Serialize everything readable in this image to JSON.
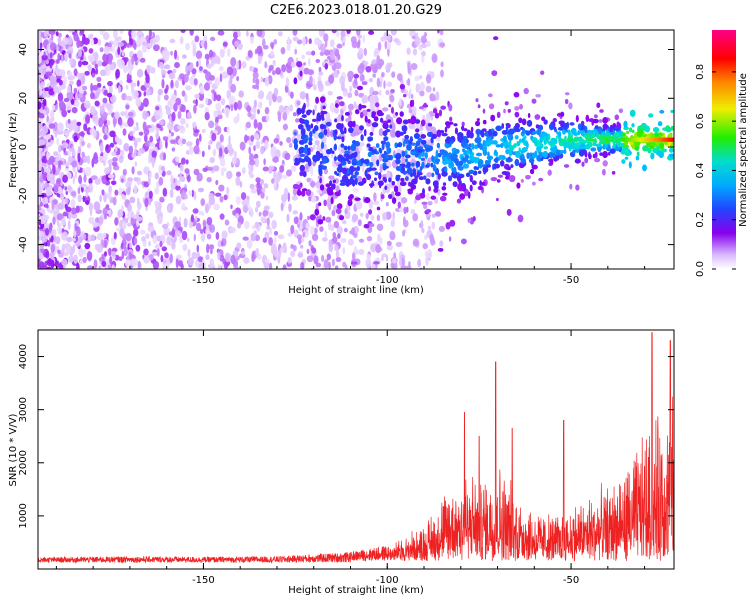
{
  "title": "C2E6.2023.018.01.20.G29",
  "chart_data": [
    {
      "type": "heatmap",
      "xlabel": "Height of straight line (km)",
      "ylabel": "Frequency (Hz)",
      "xlim": [
        -195,
        -22
      ],
      "ylim": [
        -50,
        48
      ],
      "xticks": [
        -150,
        -100,
        -50
      ],
      "yticks": [
        -40,
        -20,
        0,
        20,
        40
      ],
      "colorbar": {
        "label": "Normalized spectral amplitude",
        "range": [
          0,
          0.97
        ],
        "ticks": [
          0.0,
          0.2,
          0.4,
          0.6,
          0.8
        ],
        "colors": [
          "#ffffff",
          "#8800ee",
          "#2244ff",
          "#00ddff",
          "#22ee00",
          "#eeee00",
          "#ff6600",
          "#ff0000",
          "#ff0088"
        ]
      },
      "description_points": {
        "noise_region_x": [
          -195,
          -120
        ],
        "signal_track": [
          {
            "x": -120,
            "y": 1
          },
          {
            "x": -110,
            "y": -5
          },
          {
            "x": -100,
            "y": -3
          },
          {
            "x": -90,
            "y": -4
          },
          {
            "x": -80,
            "y": -4
          },
          {
            "x": -70,
            "y": 0
          },
          {
            "x": -60,
            "y": 1
          },
          {
            "x": -50,
            "y": 3
          },
          {
            "x": -40,
            "y": 3
          },
          {
            "x": -30,
            "y": 3
          },
          {
            "x": -22,
            "y": 3
          }
        ]
      }
    },
    {
      "type": "line",
      "xlabel": "Height of straight line (km)",
      "ylabel": "SNR (10 * V/V)",
      "xlim": [
        -195,
        -22
      ],
      "ylim": [
        0,
        4500
      ],
      "xticks": [
        -150,
        -100,
        -50
      ],
      "yticks": [
        1000,
        2000,
        3000,
        4000
      ],
      "color": "#ee2222",
      "envelope": [
        {
          "x": -195,
          "y": 220
        },
        {
          "x": -170,
          "y": 240
        },
        {
          "x": -150,
          "y": 230
        },
        {
          "x": -130,
          "y": 240
        },
        {
          "x": -110,
          "y": 320
        },
        {
          "x": -100,
          "y": 450
        },
        {
          "x": -90,
          "y": 900
        },
        {
          "x": -85,
          "y": 1500
        },
        {
          "x": -80,
          "y": 2100
        },
        {
          "x": -75,
          "y": 1800
        },
        {
          "x": -70,
          "y": 2200
        },
        {
          "x": -65,
          "y": 1600
        },
        {
          "x": -60,
          "y": 1200
        },
        {
          "x": -55,
          "y": 1100
        },
        {
          "x": -50,
          "y": 1300
        },
        {
          "x": -45,
          "y": 1500
        },
        {
          "x": -40,
          "y": 1700
        },
        {
          "x": -35,
          "y": 2000
        },
        {
          "x": -30,
          "y": 2800
        },
        {
          "x": -25,
          "y": 3200
        },
        {
          "x": -22,
          "y": 3500
        }
      ],
      "peaks": [
        {
          "x": -70.5,
          "y": 3900
        },
        {
          "x": -79,
          "y": 2950
        },
        {
          "x": -75,
          "y": 2500
        },
        {
          "x": -66,
          "y": 2650
        },
        {
          "x": -52,
          "y": 2800
        },
        {
          "x": -28,
          "y": 4450
        },
        {
          "x": -23,
          "y": 4300
        }
      ]
    }
  ]
}
